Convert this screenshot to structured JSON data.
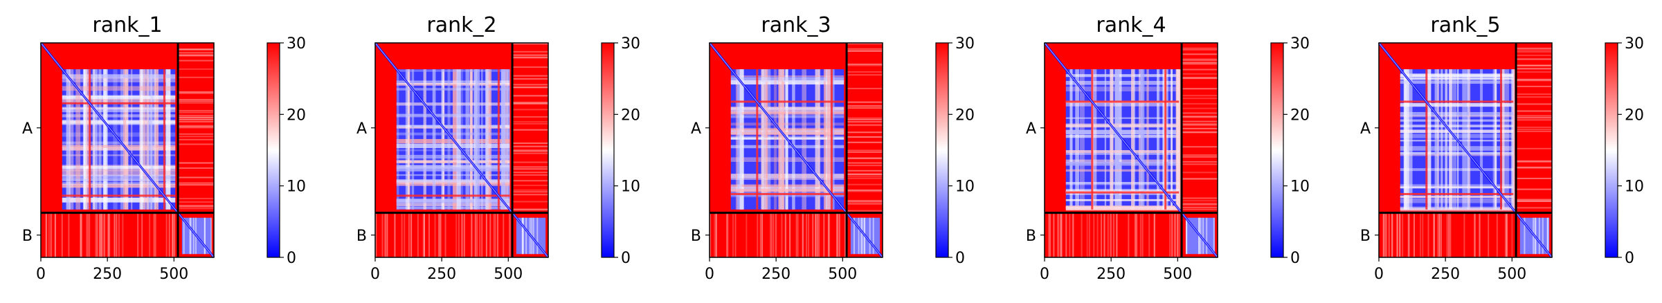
{
  "chart_data": [
    {
      "type": "heatmap",
      "title": "rank_1",
      "x_ticks": [
        "0",
        "250",
        "500"
      ],
      "x_tick_values": [
        0,
        250,
        500
      ],
      "x_max": 650,
      "chain_break": 515,
      "y_tick_labels": [
        "A",
        "B"
      ],
      "colorbar": {
        "range": [
          0,
          30
        ],
        "ticks": [
          "0",
          "10",
          "20",
          "30"
        ],
        "colormap": [
          "#0000ff",
          "#ffffff",
          "#ff0000"
        ]
      },
      "variant": 1
    },
    {
      "type": "heatmap",
      "title": "rank_2",
      "x_ticks": [
        "0",
        "250",
        "500"
      ],
      "x_tick_values": [
        0,
        250,
        500
      ],
      "x_max": 650,
      "chain_break": 515,
      "y_tick_labels": [
        "A",
        "B"
      ],
      "colorbar": {
        "range": [
          0,
          30
        ],
        "ticks": [
          "0",
          "10",
          "20",
          "30"
        ],
        "colormap": [
          "#0000ff",
          "#ffffff",
          "#ff0000"
        ]
      },
      "variant": 2
    },
    {
      "type": "heatmap",
      "title": "rank_3",
      "x_ticks": [
        "0",
        "250",
        "500"
      ],
      "x_tick_values": [
        0,
        250,
        500
      ],
      "x_max": 650,
      "chain_break": 515,
      "y_tick_labels": [
        "A",
        "B"
      ],
      "colorbar": {
        "range": [
          0,
          30
        ],
        "ticks": [
          "0",
          "10",
          "20",
          "30"
        ],
        "colormap": [
          "#0000ff",
          "#ffffff",
          "#ff0000"
        ]
      },
      "variant": 3
    },
    {
      "type": "heatmap",
      "title": "rank_4",
      "x_ticks": [
        "0",
        "250",
        "500"
      ],
      "x_tick_values": [
        0,
        250,
        500
      ],
      "x_max": 650,
      "chain_break": 515,
      "y_tick_labels": [
        "A",
        "B"
      ],
      "colorbar": {
        "range": [
          0,
          30
        ],
        "ticks": [
          "0",
          "10",
          "20",
          "30"
        ],
        "colormap": [
          "#0000ff",
          "#ffffff",
          "#ff0000"
        ]
      },
      "variant": 4
    },
    {
      "type": "heatmap",
      "title": "rank_5",
      "x_ticks": [
        "0",
        "250",
        "500"
      ],
      "x_tick_values": [
        0,
        250,
        500
      ],
      "x_max": 650,
      "chain_break": 515,
      "y_tick_labels": [
        "A",
        "B"
      ],
      "colorbar": {
        "range": [
          0,
          30
        ],
        "ticks": [
          "0",
          "10",
          "20",
          "30"
        ],
        "colormap": [
          "#0000ff",
          "#ffffff",
          "#ff0000"
        ]
      },
      "variant": 5
    }
  ]
}
